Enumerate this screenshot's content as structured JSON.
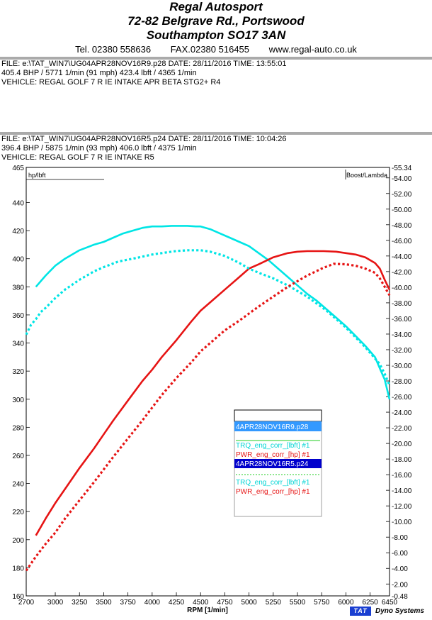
{
  "header": {
    "company": "Regal Autosport",
    "address1": "72-82 Belgrave Rd., Portswood",
    "address2": "Southampton SO17 3AN",
    "tel": "Tel. 02380 558636",
    "fax": "FAX.02380 516455",
    "web": "www.regal-auto.co.uk"
  },
  "run1": {
    "file_line": "FILE: e:\\TAT_WIN7\\UG04APR28NOV16R9.p28  DATE: 28/11/2016  TIME: 13:55:01",
    "power_line": "405.4 BHP / 5771 1/min (91 mph)    423.4 lbft / 4365 1/min",
    "vehicle_line": "VEHICLE: REGAL GOLF 7 R IE INTAKE APR BETA STG2+ R4"
  },
  "run2": {
    "file_line": "FILE: e:\\TAT_WIN7\\UG04APR28NOV16R5.p24  DATE: 28/11/2016  TIME: 10:04:26",
    "power_line": "396.4 BHP / 5875 1/min (93 mph)    406.0 lbft / 4375 1/min",
    "vehicle_line": "VEHICLE: REGAL GOLF 7 R IE INTAKE R5"
  },
  "footer": {
    "brand": "TAT",
    "brand_text": "Dyno Systems"
  },
  "chart_data": {
    "type": "line",
    "xlabel": "RPM  [1/min]",
    "left_axis_label": "hp/lbft",
    "right_axis_label": "Boost/Lambda",
    "xlim": [
      2700,
      6450
    ],
    "ylim": [
      160,
      465
    ],
    "right_ylim": [
      0.48,
      55.34
    ],
    "x_ticks": [
      "2700",
      "3000",
      "3250",
      "3500",
      "3750",
      "4000",
      "4250",
      "4500",
      "4750",
      "5000",
      "5250",
      "5500",
      "5750",
      "6000",
      "6250",
      "6450"
    ],
    "y_ticks": [
      "160",
      "180",
      "200",
      "220",
      "240",
      "260",
      "280",
      "300",
      "320",
      "340",
      "360",
      "380",
      "400",
      "420",
      "440",
      "465"
    ],
    "right_y_ticks": [
      "0.48",
      "2.00",
      "4.00",
      "6.00",
      "8.00",
      "10.00",
      "12.00",
      "14.00",
      "16.00",
      "18.00",
      "20.00",
      "22.00",
      "24.00",
      "26.00",
      "28.00",
      "30.00",
      "32.00",
      "34.00",
      "36.00",
      "38.00",
      "40.00",
      "42.00",
      "44.00",
      "46.00",
      "48.00",
      "50.00",
      "52.00",
      "54.00",
      "55.34"
    ],
    "legend": {
      "run1_file": "4APR28NOV16R9.p28",
      "run1_trq": "TRQ_eng_corr_[lbft] #1",
      "run1_pwr": "PWR_eng_corr_[hp] #1",
      "run2_file": "4APR28NOV16R5.p24",
      "run2_trq": "TRQ_eng_corr_[lbft] #1",
      "run2_pwr": "PWR_eng_corr_[hp] #1"
    },
    "series": [
      {
        "name": "TRQ_eng_corr_[lbft] #1",
        "run": "4APR28NOV16R9.p28",
        "color": "#00e5e5",
        "style": "solid",
        "x": [
          2800,
          2900,
          3000,
          3100,
          3250,
          3400,
          3500,
          3600,
          3700,
          3800,
          3900,
          4000,
          4100,
          4200,
          4300,
          4365,
          4450,
          4500,
          4600,
          4700,
          4800,
          4900,
          5000,
          5100,
          5200,
          5300,
          5400,
          5500,
          5600,
          5700,
          5800,
          5900,
          6000,
          6100,
          6200,
          6250,
          6300,
          6350,
          6400,
          6450
        ],
        "y": [
          380,
          388,
          395,
          400,
          406,
          410,
          412,
          415,
          418,
          420,
          422,
          423,
          423,
          423.4,
          423.4,
          423.4,
          423,
          423,
          421,
          418,
          415,
          412,
          409,
          404,
          399,
          393,
          387,
          381,
          375,
          370,
          364,
          358,
          352,
          345,
          338,
          334,
          330,
          322,
          314,
          300
        ]
      },
      {
        "name": "PWR_eng_corr_[hp] #1",
        "run": "4APR28NOV16R9.p28",
        "color": "#e61414",
        "style": "solid",
        "x": [
          2800,
          2900,
          3000,
          3100,
          3250,
          3400,
          3500,
          3600,
          3750,
          3900,
          4000,
          4100,
          4250,
          4400,
          4500,
          4600,
          4750,
          4900,
          5000,
          5100,
          5250,
          5400,
          5500,
          5600,
          5771,
          5900,
          6000,
          6100,
          6200,
          6300,
          6350,
          6400,
          6450
        ],
        "y": [
          203,
          215,
          226,
          236,
          251,
          265,
          275,
          285,
          299,
          313,
          321,
          330,
          342,
          355,
          363,
          369,
          378,
          387,
          393,
          396,
          401,
          404,
          405,
          405.4,
          405.4,
          405,
          404,
          403,
          401,
          397,
          393,
          385,
          378
        ]
      },
      {
        "name": "TRQ_eng_corr_[lbft] #1",
        "run": "4APR28NOV16R5.p24",
        "color": "#00e5e5",
        "style": "dotted",
        "x": [
          2700,
          2750,
          2800,
          2850,
          2900,
          3000,
          3100,
          3250,
          3400,
          3500,
          3650,
          3800,
          4000,
          4100,
          4250,
          4375,
          4500,
          4600,
          4750,
          4900,
          5000,
          5100,
          5250,
          5400,
          5500,
          5600,
          5700,
          5800,
          5900,
          6000,
          6100,
          6200,
          6250,
          6300,
          6350,
          6400,
          6450
        ],
        "y": [
          346,
          353,
          357,
          362,
          365,
          372,
          378,
          385,
          391,
          394,
          398,
          400,
          403,
          404,
          405.5,
          406,
          406,
          405,
          402,
          397,
          393,
          390,
          386,
          381,
          377,
          373,
          368,
          363,
          357,
          351,
          344,
          337,
          333,
          329,
          325,
          318,
          310
        ]
      },
      {
        "name": "PWR_eng_corr_[hp] #1",
        "run": "4APR28NOV16R5.p24",
        "color": "#e61414",
        "style": "dotted",
        "x": [
          2700,
          2750,
          2800,
          2900,
          3000,
          3100,
          3250,
          3400,
          3500,
          3600,
          3750,
          3900,
          4000,
          4100,
          4250,
          4400,
          4500,
          4600,
          4750,
          4900,
          5000,
          5100,
          5250,
          5400,
          5500,
          5600,
          5750,
          5875,
          6000,
          6100,
          6200,
          6300,
          6350,
          6400,
          6450
        ],
        "y": [
          178,
          183,
          188,
          197,
          205,
          215,
          228,
          241,
          250,
          259,
          272,
          285,
          294,
          303,
          315,
          326,
          334,
          340,
          349,
          356,
          361,
          366,
          373,
          380,
          384,
          388,
          393,
          396.4,
          396,
          395,
          393,
          390,
          386,
          380,
          374
        ]
      }
    ]
  }
}
